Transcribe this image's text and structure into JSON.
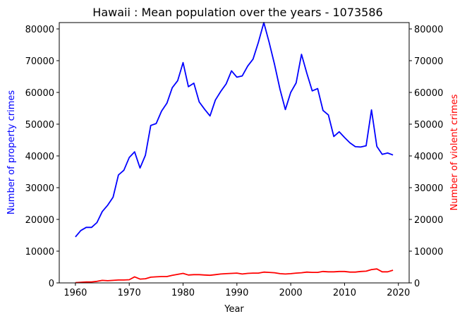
{
  "chart_data": {
    "type": "line",
    "title": "Hawaii : Mean population over the years - 1073586",
    "xlabel": "Year",
    "ylabel_left": "Number of property crimes",
    "ylabel_right": "Number of violent crimes",
    "xlim": [
      1957,
      2022
    ],
    "ylim": [
      0,
      82000
    ],
    "x_ticks": [
      1960,
      1970,
      1980,
      1990,
      2000,
      2010,
      2020
    ],
    "y_ticks": [
      0,
      10000,
      20000,
      30000,
      40000,
      50000,
      60000,
      70000,
      80000
    ],
    "grid": false,
    "colors": {
      "property": "#0000ff",
      "violent": "#ff0000"
    },
    "x": [
      1960,
      1961,
      1962,
      1963,
      1964,
      1965,
      1966,
      1967,
      1968,
      1969,
      1970,
      1971,
      1972,
      1973,
      1974,
      1975,
      1976,
      1977,
      1978,
      1979,
      1980,
      1981,
      1982,
      1983,
      1984,
      1985,
      1986,
      1987,
      1988,
      1989,
      1990,
      1991,
      1992,
      1993,
      1994,
      1995,
      1996,
      1997,
      1998,
      1999,
      2000,
      2001,
      2002,
      2003,
      2004,
      2005,
      2006,
      2007,
      2008,
      2009,
      2010,
      2011,
      2012,
      2013,
      2014,
      2015,
      2016,
      2017,
      2018,
      2019
    ],
    "series": [
      {
        "axis": "left",
        "color": "#0000ff",
        "values": [
          14500,
          16500,
          17500,
          17500,
          19000,
          22500,
          24500,
          27000,
          34000,
          35500,
          39500,
          41300,
          36200,
          40200,
          49600,
          50200,
          54100,
          56600,
          61500,
          63700,
          69400,
          61800,
          62900,
          57000,
          54700,
          52600,
          57600,
          60300,
          62700,
          66800,
          64800,
          65200,
          68300,
          70500,
          75800,
          82000,
          75700,
          68800,
          61000,
          54600,
          60000,
          63000,
          72000,
          66000,
          60500,
          61200,
          54300,
          52900,
          46100,
          47600,
          45800,
          44100,
          42900,
          42800,
          43200,
          54500,
          43000,
          40500,
          40900,
          40300
        ]
      },
      {
        "axis": "right",
        "color": "#ff0000",
        "values": [
          100,
          200,
          300,
          300,
          500,
          800,
          700,
          800,
          900,
          900,
          1000,
          1900,
          1200,
          1300,
          1800,
          1900,
          2000,
          2000,
          2400,
          2700,
          3000,
          2500,
          2600,
          2600,
          2500,
          2400,
          2600,
          2800,
          2900,
          3000,
          3100,
          2800,
          3000,
          3100,
          3100,
          3400,
          3300,
          3200,
          2900,
          2800,
          2900,
          3100,
          3200,
          3400,
          3300,
          3300,
          3600,
          3500,
          3500,
          3600,
          3600,
          3400,
          3400,
          3600,
          3700,
          4200,
          4400,
          3500,
          3500,
          4000
        ]
      }
    ]
  }
}
